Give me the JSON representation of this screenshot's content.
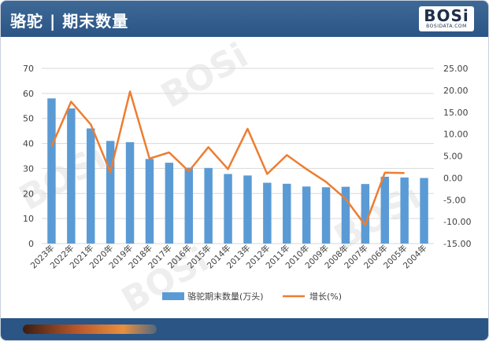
{
  "header": {
    "title": "骆驼 | 期末数量",
    "logo_text": "BOSi",
    "logo_sub": "BOSIDATA.COM"
  },
  "watermark_text": "BOSi",
  "colors": {
    "header_bg": "#2b5585",
    "bar": "#5b9bd5",
    "line": "#ed7d31",
    "grid": "#d9d9d9"
  },
  "chart_data": {
    "type": "bar",
    "categories": [
      "2023年",
      "2022年",
      "2021年",
      "2020年",
      "2019年",
      "2018年",
      "2017年",
      "2016年",
      "2015年",
      "2014年",
      "2013年",
      "2012年",
      "2011年",
      "2010年",
      "2009年",
      "2008年",
      "2007年",
      "2006年",
      "2005年",
      "2004年"
    ],
    "series": [
      {
        "name": "骆驼期末数量(万头)",
        "type": "bar",
        "axis": "left",
        "values": [
          58,
          54,
          46,
          41,
          40.5,
          33.8,
          32.3,
          30.3,
          30.2,
          27.8,
          27.2,
          24.3,
          23.9,
          22.8,
          22.5,
          22.7,
          23.8,
          26.7,
          26.4,
          26.2
        ]
      },
      {
        "name": "增长(%)",
        "type": "line",
        "axis": "right",
        "values": [
          7.2,
          17.4,
          12.2,
          1.3,
          19.7,
          4.4,
          5.8,
          1.5,
          7.0,
          2.0,
          11.2,
          0.9,
          5.2,
          2.0,
          -0.9,
          -4.8,
          -10.8,
          1.2,
          1.1,
          null
        ]
      }
    ],
    "left_axis": {
      "min": 0,
      "max": 70,
      "step": 10,
      "ticks": [
        "0",
        "10",
        "20",
        "30",
        "40",
        "50",
        "60",
        "70"
      ]
    },
    "right_axis": {
      "min": -15,
      "max": 25,
      "step": 5,
      "ticks": [
        "-15.00",
        "-10.00",
        "-5.00",
        "0.00",
        "5.00",
        "10.00",
        "15.00",
        "20.00",
        "25.00"
      ]
    },
    "grid": true,
    "legend_position": "bottom",
    "xlabel": "",
    "ylabel": ""
  }
}
